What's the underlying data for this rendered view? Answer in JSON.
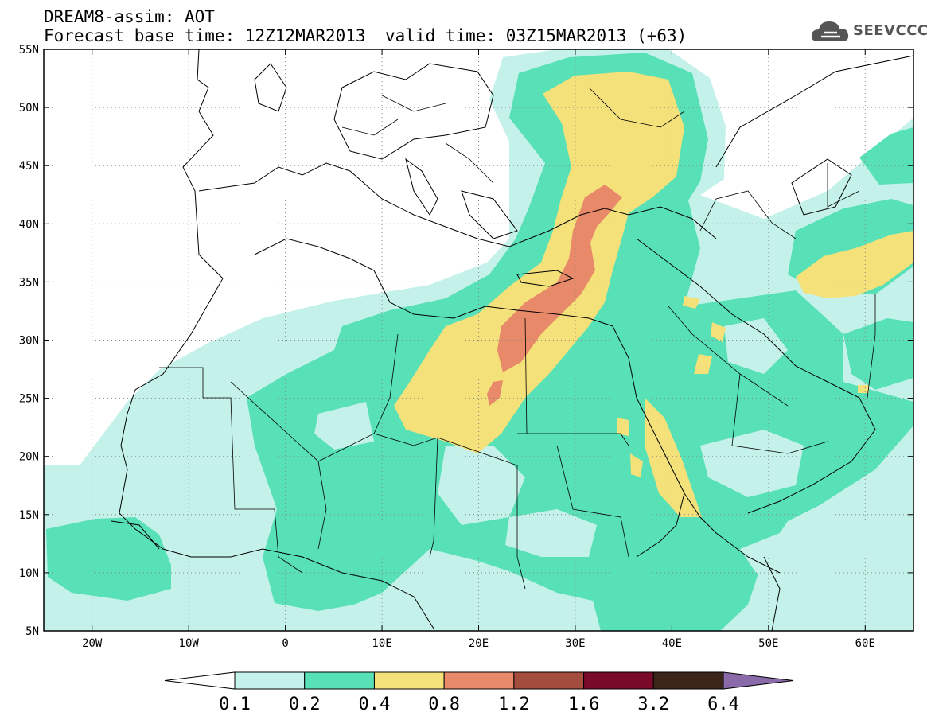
{
  "header": {
    "line1": "DREAM8-assim: AOT",
    "line2": "Forecast base time: 12Z12MAR2013",
    "line3": "valid time: 03Z15MAR2013 (+63)",
    "logo_text": "SEEVCCC"
  },
  "map": {
    "lon_range": [
      -25,
      65
    ],
    "lat_range": [
      5,
      55
    ],
    "grid_lines": "dotted",
    "x_ticks": [
      {
        "lon": -20,
        "label": "20W"
      },
      {
        "lon": -10,
        "label": "10W"
      },
      {
        "lon": 0,
        "label": "0"
      },
      {
        "lon": 10,
        "label": "10E"
      },
      {
        "lon": 20,
        "label": "20E"
      },
      {
        "lon": 30,
        "label": "30E"
      },
      {
        "lon": 40,
        "label": "40E"
      },
      {
        "lon": 50,
        "label": "50E"
      },
      {
        "lon": 60,
        "label": "60E"
      }
    ],
    "y_ticks": [
      {
        "lat": 55,
        "label": "55N"
      },
      {
        "lat": 50,
        "label": "50N"
      },
      {
        "lat": 45,
        "label": "45N"
      },
      {
        "lat": 40,
        "label": "40N"
      },
      {
        "lat": 35,
        "label": "35N"
      },
      {
        "lat": 30,
        "label": "30N"
      },
      {
        "lat": 25,
        "label": "25N"
      },
      {
        "lat": 20,
        "label": "20N"
      },
      {
        "lat": 15,
        "label": "15N"
      },
      {
        "lat": 10,
        "label": "10N"
      },
      {
        "lat": 5,
        "label": "5N"
      }
    ],
    "colors": {
      "c01": "#c4f2ea",
      "c02": "#58e0b6",
      "c04": "#f4e17a",
      "c08": "#e8896a"
    }
  },
  "colorbar": {
    "bins": [
      {
        "color": "#ffffff"
      },
      {
        "color": "#c4f2ea"
      },
      {
        "color": "#58e0b6"
      },
      {
        "color": "#f4e17a"
      },
      {
        "color": "#e8896a"
      },
      {
        "color": "#a44c3e"
      },
      {
        "color": "#7a0a2a"
      },
      {
        "color": "#3b2418"
      },
      {
        "color": "#8a6aa8"
      }
    ],
    "labels": [
      "0.1",
      "0.2",
      "0.4",
      "0.8",
      "1.2",
      "1.6",
      "3.2",
      "6.4"
    ]
  }
}
